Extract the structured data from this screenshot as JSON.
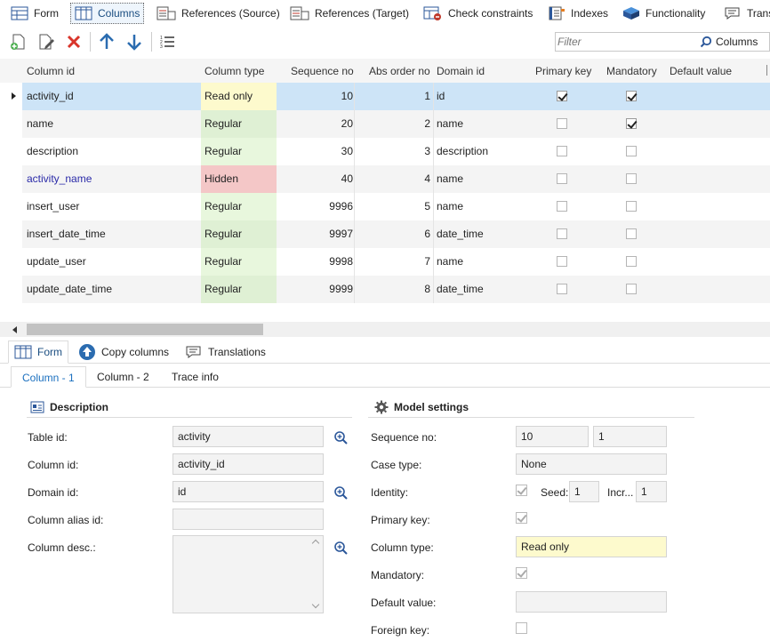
{
  "top_tabs": [
    {
      "label": "Form"
    },
    {
      "label": "Columns"
    },
    {
      "label": "References (Source)"
    },
    {
      "label": "References (Target)"
    },
    {
      "label": "Check constraints"
    },
    {
      "label": "Indexes"
    },
    {
      "label": "Functionality"
    },
    {
      "label": "Trans"
    }
  ],
  "filter": {
    "placeholder": "Filter",
    "button_label": "Columns"
  },
  "grid": {
    "headers": {
      "column_id": "Column id",
      "column_type": "Column type",
      "sequence_no": "Sequence no",
      "abs_order_no": "Abs order no",
      "domain_id": "Domain id",
      "primary_key": "Primary key",
      "mandatory": "Mandatory",
      "default_value": "Default value"
    },
    "rows": [
      {
        "column_id": "activity_id",
        "column_type": "Read only",
        "sequence_no": "10",
        "abs_order_no": "1",
        "domain_id": "id",
        "primary_key": true,
        "mandatory": true
      },
      {
        "column_id": "name",
        "column_type": "Regular",
        "sequence_no": "20",
        "abs_order_no": "2",
        "domain_id": "name",
        "primary_key": false,
        "mandatory": true
      },
      {
        "column_id": "description",
        "column_type": "Regular",
        "sequence_no": "30",
        "abs_order_no": "3",
        "domain_id": "description",
        "primary_key": false,
        "mandatory": false
      },
      {
        "column_id": "activity_name",
        "column_type": "Hidden",
        "sequence_no": "40",
        "abs_order_no": "4",
        "domain_id": "name",
        "primary_key": false,
        "mandatory": false
      },
      {
        "column_id": "insert_user",
        "column_type": "Regular",
        "sequence_no": "9996",
        "abs_order_no": "5",
        "domain_id": "name",
        "primary_key": false,
        "mandatory": false
      },
      {
        "column_id": "insert_date_time",
        "column_type": "Regular",
        "sequence_no": "9997",
        "abs_order_no": "6",
        "domain_id": "date_time",
        "primary_key": false,
        "mandatory": false
      },
      {
        "column_id": "update_user",
        "column_type": "Regular",
        "sequence_no": "9998",
        "abs_order_no": "7",
        "domain_id": "name",
        "primary_key": false,
        "mandatory": false
      },
      {
        "column_id": "update_date_time",
        "column_type": "Regular",
        "sequence_no": "9999",
        "abs_order_no": "8",
        "domain_id": "date_time",
        "primary_key": false,
        "mandatory": false
      }
    ]
  },
  "bottom_tabs": [
    {
      "label": "Form"
    },
    {
      "label": "Copy columns"
    },
    {
      "label": "Translations"
    }
  ],
  "sub_tabs": [
    {
      "label": "Column - 1"
    },
    {
      "label": "Column - 2"
    },
    {
      "label": "Trace info"
    }
  ],
  "description_section": {
    "title": "Description",
    "table_id_label": "Table id:",
    "table_id_value": "activity",
    "column_id_label": "Column id:",
    "column_id_value": "activity_id",
    "domain_id_label": "Domain id:",
    "domain_id_value": "id",
    "column_alias_label": "Column alias id:",
    "column_alias_value": "",
    "column_desc_label": "Column desc.:",
    "column_desc_value": ""
  },
  "model_section": {
    "title": "Model settings",
    "sequence_label": "Sequence no:",
    "sequence_value": "10",
    "abs_order_value": "1",
    "case_type_label": "Case type:",
    "case_type_value": "None",
    "identity_label": "Identity:",
    "identity_checked": true,
    "seed_label": "Seed:",
    "seed_value": "1",
    "incr_label": "Incr...",
    "incr_value": "1",
    "primary_key_label": "Primary key:",
    "primary_key_checked": true,
    "column_type_label": "Column type:",
    "column_type_value": "Read only",
    "mandatory_label": "Mandatory:",
    "mandatory_checked": true,
    "default_value_label": "Default value:",
    "default_value_value": "",
    "foreign_key_label": "Foreign key:",
    "foreign_key_checked": false
  },
  "colors": {
    "selected_row": "#cde4f7",
    "read_only": "#fdfacd",
    "regular": "#dff0d4",
    "hidden": "#f4c7c7",
    "hidden_text": "#2a2aa8",
    "accent": "#1a6fbf"
  }
}
